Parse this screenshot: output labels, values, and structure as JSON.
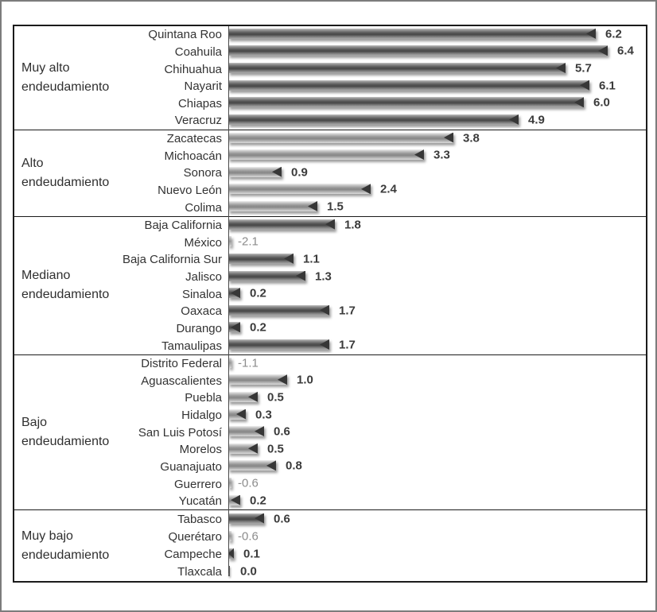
{
  "chart_data": {
    "type": "bar",
    "orientation": "horizontal",
    "xlim": [
      0,
      7.05
    ],
    "grid": false,
    "legend": false,
    "value_labels": "end-of-bar",
    "groups": [
      {
        "label": "Muy alto endeudamiento",
        "label_lines": [
          "Muy alto",
          "endeudamiento"
        ],
        "shade": "dark",
        "bars": [
          {
            "name": "Quintana Roo",
            "value": 6.2,
            "label": "6.2"
          },
          {
            "name": "Coahuila",
            "value": 6.4,
            "label": "6.4"
          },
          {
            "name": "Chihuahua",
            "value": 5.7,
            "label": "5.7"
          },
          {
            "name": "Nayarit",
            "value": 6.1,
            "label": "6.1"
          },
          {
            "name": "Chiapas",
            "value": 6.0,
            "label": "6.0"
          },
          {
            "name": "Veracruz",
            "value": 4.9,
            "label": "4.9"
          }
        ]
      },
      {
        "label": "Alto endeudamiento",
        "label_lines": [
          "Alto",
          "endeudamiento"
        ],
        "shade": "light",
        "bars": [
          {
            "name": "Zacatecas",
            "value": 3.8,
            "label": "3.8"
          },
          {
            "name": "Michoacán",
            "value": 3.3,
            "label": "3.3"
          },
          {
            "name": "Sonora",
            "value": 0.9,
            "label": "0.9"
          },
          {
            "name": "Nuevo León",
            "value": 2.4,
            "label": "2.4"
          },
          {
            "name": "Colima",
            "value": 1.5,
            "label": "1.5"
          }
        ]
      },
      {
        "label": "Mediano endeudamiento",
        "label_lines": [
          "Mediano",
          "endeudamiento"
        ],
        "shade": "dark",
        "bars": [
          {
            "name": "Baja California",
            "value": 1.8,
            "label": "1.8"
          },
          {
            "name": "México",
            "value": -2.1,
            "label": "-2.1"
          },
          {
            "name": "Baja California Sur",
            "value": 1.1,
            "label": "1.1"
          },
          {
            "name": "Jalisco",
            "value": 1.3,
            "label": "1.3"
          },
          {
            "name": "Sinaloa",
            "value": 0.2,
            "label": "0.2"
          },
          {
            "name": "Oaxaca",
            "value": 1.7,
            "label": "1.7"
          },
          {
            "name": "Durango",
            "value": 0.2,
            "label": "0.2"
          },
          {
            "name": "Tamaulipas",
            "value": 1.7,
            "label": "1.7"
          }
        ]
      },
      {
        "label": "Bajo endeudamiento",
        "label_lines": [
          "Bajo",
          "endeudamiento"
        ],
        "shade": "light",
        "bars": [
          {
            "name": "Distrito Federal",
            "value": -1.1,
            "label": "-1.1"
          },
          {
            "name": "Aguascalientes",
            "value": 1.0,
            "label": "1.0"
          },
          {
            "name": "Puebla",
            "value": 0.5,
            "label": "0.5"
          },
          {
            "name": "Hidalgo",
            "value": 0.3,
            "label": "0.3"
          },
          {
            "name": "San Luis Potosí",
            "value": 0.6,
            "label": "0.6"
          },
          {
            "name": "Morelos",
            "value": 0.5,
            "label": "0.5"
          },
          {
            "name": "Guanajuato",
            "value": 0.8,
            "label": "0.8"
          },
          {
            "name": "Guerrero",
            "value": -0.6,
            "label": "-0.6"
          },
          {
            "name": "Yucatán",
            "value": 0.2,
            "label": "0.2"
          }
        ]
      },
      {
        "label": "Muy bajo endeudamiento",
        "label_lines": [
          "Muy bajo",
          "endeudamiento"
        ],
        "shade": "dark",
        "bars": [
          {
            "name": "Tabasco",
            "value": 0.6,
            "label": "0.6"
          },
          {
            "name": "Querétaro",
            "value": -0.6,
            "label": "-0.6"
          },
          {
            "name": "Campeche",
            "value": 0.1,
            "label": "0.1"
          },
          {
            "name": "Tlaxcala",
            "value": 0.0,
            "label": "0.0"
          }
        ]
      }
    ],
    "colors": {
      "bar_dark_core": "#4e4e4e",
      "bar_light_core": "#8f8f8f",
      "bar_tip": "#373737",
      "positive_value_label": "#3b3b3b",
      "negative_value_label": "#8c8c8c",
      "category_text": "#333333",
      "group_text": "#2f2f2f",
      "box_border": "#1b1b1b",
      "outer_frame": "#7c7c7c",
      "axis_line": "#4d4d4d"
    }
  }
}
